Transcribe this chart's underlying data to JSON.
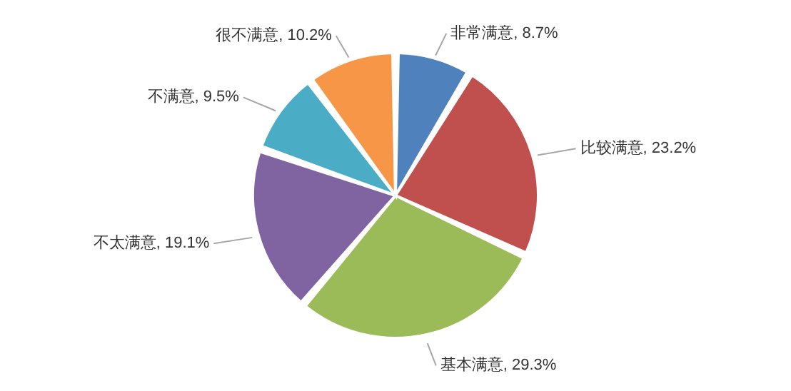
{
  "chart_data": {
    "type": "pie",
    "categories": [
      "非常满意",
      "比较满意",
      "基本满意",
      "不太满意",
      "不满意",
      "很不满意"
    ],
    "values": [
      8.7,
      23.2,
      29.3,
      19.1,
      9.5,
      10.2
    ],
    "value_labels": [
      "8.7%",
      "23.2%",
      "29.3%",
      "19.1%",
      "9.5%",
      "10.2%"
    ],
    "colors": [
      "#4f81bd",
      "#c0504d",
      "#9bbb59",
      "#8064a2",
      "#4bacc6",
      "#f79646"
    ]
  }
}
